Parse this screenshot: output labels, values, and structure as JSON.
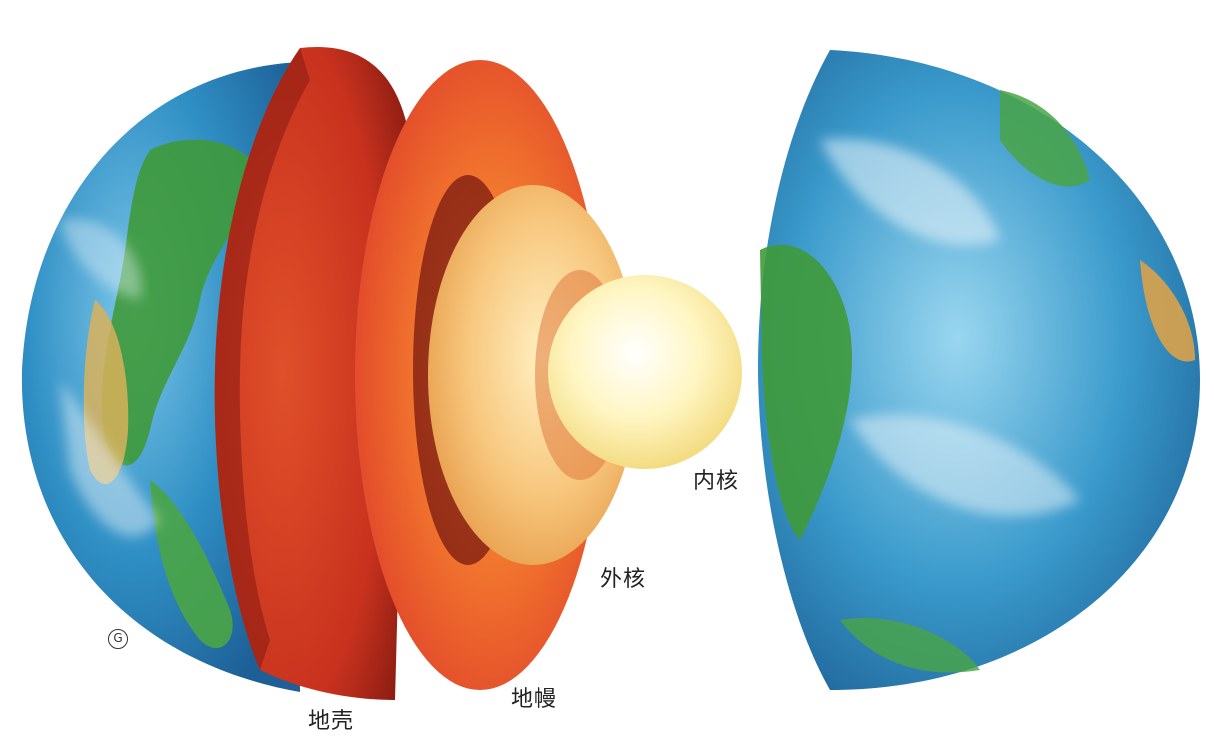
{
  "labels": {
    "inner_core": "内核",
    "outer_core": "外核",
    "mantle": "地幔",
    "crust": "地壳"
  },
  "watermark": "G",
  "colors": {
    "ocean": "#2f8fc4",
    "land": "#3f9a3a",
    "crust": "#c8321e",
    "mantle": "#ee5a22",
    "outer_core": "#f2b25a",
    "inner_core": "#fff1b0"
  }
}
